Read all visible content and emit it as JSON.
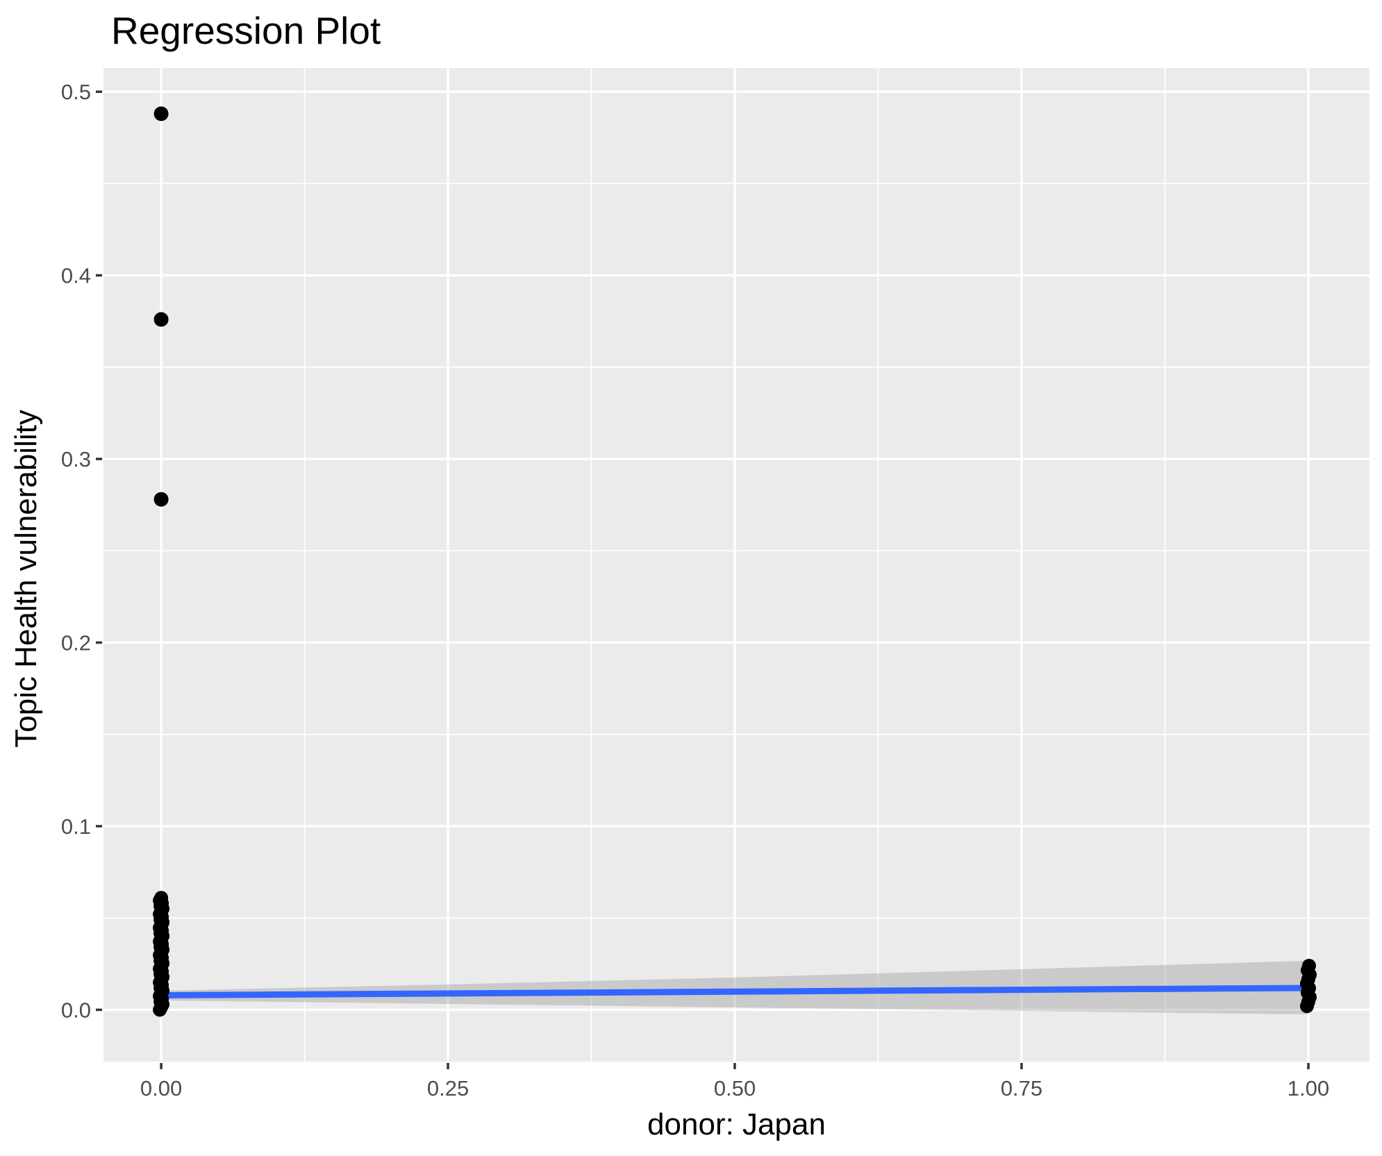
{
  "page": {
    "background": "#FFFFFF"
  },
  "chart_data": {
    "type": "scatter",
    "title": "Regression Plot",
    "xlabel": "donor: Japan",
    "ylabel": "Topic Health vulnerability",
    "xlim": [
      -0.0503,
      1.0533
    ],
    "ylim": [
      -0.0282,
      0.5129
    ],
    "grid": true,
    "legend": "none",
    "x_ticks": [
      {
        "value": 0.0,
        "label": "0.00"
      },
      {
        "value": 0.25,
        "label": "0.25"
      },
      {
        "value": 0.5,
        "label": "0.50"
      },
      {
        "value": 0.75,
        "label": "0.75"
      },
      {
        "value": 1.0,
        "label": "1.00"
      }
    ],
    "y_ticks": [
      {
        "value": 0.0,
        "label": "0.0"
      },
      {
        "value": 0.1,
        "label": "0.1"
      },
      {
        "value": 0.2,
        "label": "0.2"
      },
      {
        "value": 0.3,
        "label": "0.3"
      },
      {
        "value": 0.4,
        "label": "0.4"
      },
      {
        "value": 0.5,
        "label": "0.5"
      }
    ],
    "x_minor_ticks": [
      0.125,
      0.375,
      0.625,
      0.875
    ],
    "y_minor_ticks": [
      0.05,
      0.15,
      0.25,
      0.35,
      0.45
    ],
    "points": {
      "outliers": [
        {
          "x": 0,
          "y": 0.488
        },
        {
          "x": 0,
          "y": 0.376
        },
        {
          "x": 0,
          "y": 0.278
        }
      ],
      "clusters": [
        {
          "x": 0,
          "y_min": 0.0,
          "y_max": 0.061,
          "count": 42,
          "description": "dense overlapping vertical stack of points"
        },
        {
          "x": 1,
          "y_min": 0.002,
          "y_max": 0.024,
          "count": 10,
          "description": "dense overlapping vertical stack of points"
        }
      ]
    },
    "regression": {
      "line": {
        "x": [
          0,
          1
        ],
        "y": [
          0.0079,
          0.0119
        ]
      },
      "confidence_band": {
        "x": [
          0.0,
          0.25,
          0.5,
          0.75,
          1.0
        ],
        "upper": [
          0.0104,
          0.0138,
          0.0176,
          0.0221,
          0.0267
        ],
        "lower": [
          0.0051,
          0.0032,
          0.0013,
          -0.0006,
          -0.0025
        ]
      }
    },
    "colors": {
      "panel": "#EBEBEB",
      "grid": "#FFFFFF",
      "point": "#000000",
      "line": "#3366FF",
      "band": "#999999",
      "band_opacity": 0.4,
      "tick_label": "#4D4D4D",
      "tick_mark": "#333333",
      "title": "#000000",
      "axis_label": "#000000"
    }
  }
}
